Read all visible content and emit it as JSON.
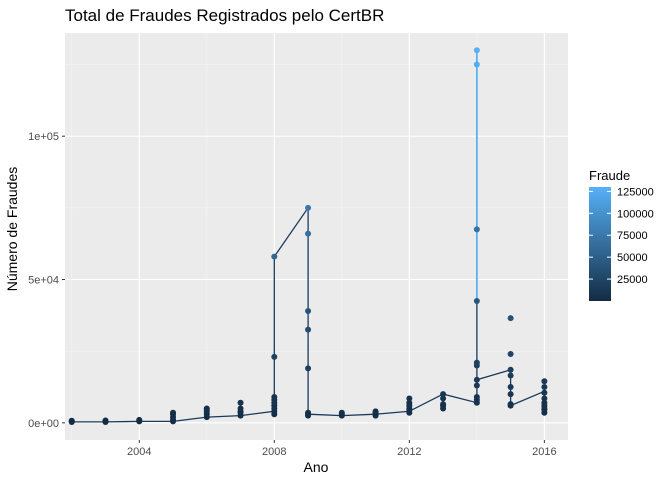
{
  "chart_data": {
    "type": "scatter",
    "title": "Total de Fraudes Registrados pelo CertBR",
    "xlabel": "Ano",
    "ylabel": "Número de Fraudes",
    "xlim": [
      2001.8,
      2016.7
    ],
    "ylim": [
      -6000,
      136000
    ],
    "x_ticks": [
      2004,
      2008,
      2012,
      2016
    ],
    "x_tick_labels": [
      "2004",
      "2008",
      "2012",
      "2016"
    ],
    "y_ticks": [
      0,
      50000,
      100000
    ],
    "y_tick_labels": [
      "0e+00",
      "5e+04",
      "1e+05"
    ],
    "grid": true,
    "legend": {
      "title": "Fraude",
      "position": "right",
      "ticks": [
        25000,
        50000,
        75000,
        100000,
        125000
      ],
      "tick_labels": [
        "25000",
        "50000",
        "75000",
        "100000",
        "125000"
      ],
      "range": [
        0,
        130000
      ],
      "low_color": "#132B43",
      "high_color": "#56B1F7"
    },
    "points": [
      {
        "x": 2002,
        "values": [
          300,
          500,
          700
        ]
      },
      {
        "x": 2003,
        "values": [
          300,
          600,
          800
        ]
      },
      {
        "x": 2004,
        "values": [
          500,
          800,
          1000
        ]
      },
      {
        "x": 2005,
        "values": [
          500,
          1000,
          2000,
          3000,
          3500
        ]
      },
      {
        "x": 2006,
        "values": [
          2000,
          3000,
          3800,
          4500,
          5000
        ]
      },
      {
        "x": 2007,
        "values": [
          2500,
          3500,
          4000,
          5000,
          7000
        ]
      },
      {
        "x": 2008,
        "values": [
          3000,
          4000,
          5000,
          6000,
          7000,
          8000,
          9000,
          23000,
          58000
        ]
      },
      {
        "x": 2009,
        "values": [
          2500,
          3000,
          3500,
          19000,
          32500,
          39000,
          66000,
          75000
        ]
      },
      {
        "x": 2010,
        "values": [
          2500,
          3000,
          3500
        ]
      },
      {
        "x": 2011,
        "values": [
          2500,
          3000,
          3500,
          4000
        ]
      },
      {
        "x": 2012,
        "values": [
          3500,
          4500,
          5000,
          6000,
          7000,
          8500
        ]
      },
      {
        "x": 2013,
        "values": [
          5000,
          6000,
          6500,
          8500,
          10000
        ]
      },
      {
        "x": 2014,
        "values": [
          7000,
          8000,
          9000,
          13000,
          15000,
          20000,
          21000,
          42500,
          67500,
          125000,
          130000
        ]
      },
      {
        "x": 2015,
        "values": [
          6000,
          6500,
          10000,
          12500,
          16500,
          18500,
          24000,
          36500
        ]
      },
      {
        "x": 2016,
        "values": [
          3500,
          4500,
          5000,
          6000,
          7000,
          8500,
          10500,
          12500,
          14500
        ]
      }
    ],
    "line": [
      [
        2002,
        300
      ],
      [
        2003,
        300
      ],
      [
        2004,
        500
      ],
      [
        2005,
        500
      ],
      [
        2006,
        2000
      ],
      [
        2007,
        2500
      ],
      [
        2008,
        4000
      ],
      [
        2008,
        58000
      ],
      [
        2009,
        75000
      ],
      [
        2009,
        3000
      ],
      [
        2010,
        2500
      ],
      [
        2011,
        3000
      ],
      [
        2012,
        4000
      ],
      [
        2013,
        10000
      ],
      [
        2014,
        7000
      ],
      [
        2014,
        130000
      ],
      [
        2014,
        15000
      ],
      [
        2015,
        18500
      ],
      [
        2015,
        6000
      ],
      [
        2016,
        11000
      ]
    ]
  }
}
